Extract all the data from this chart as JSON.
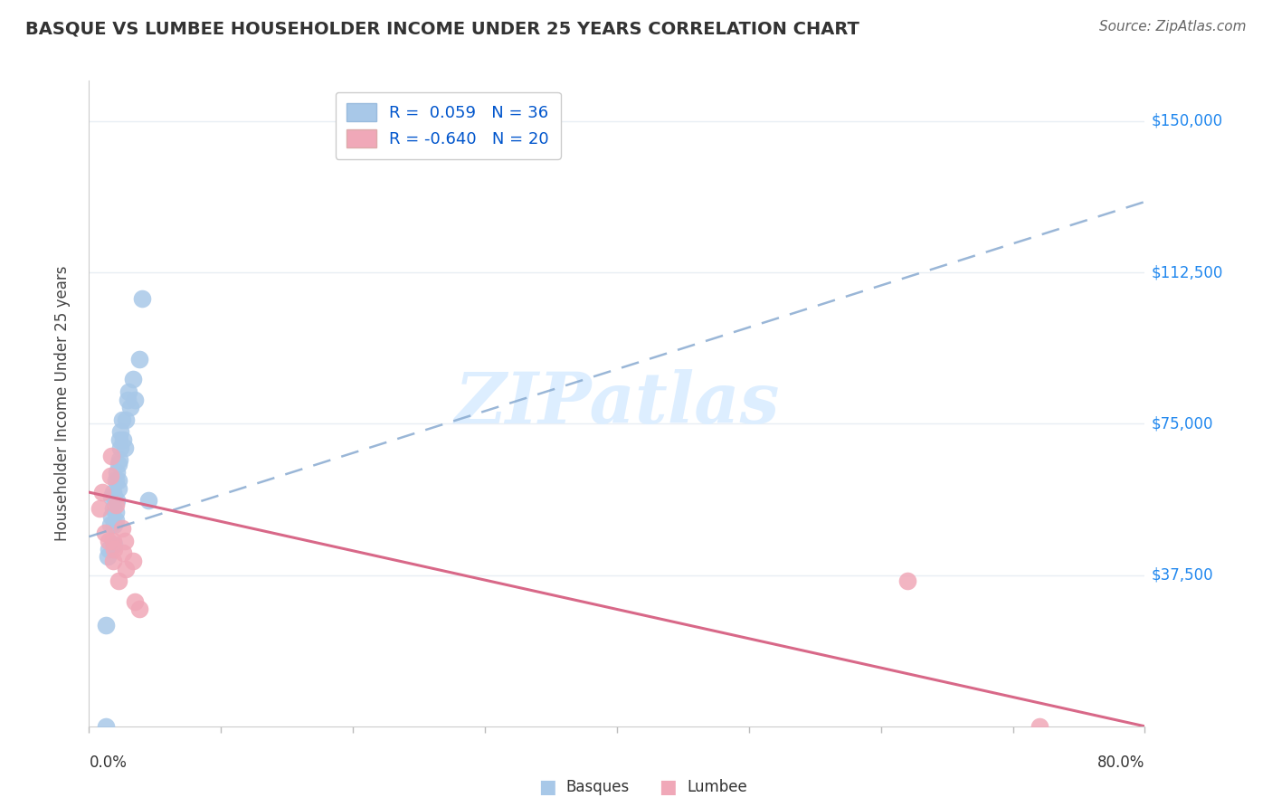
{
  "title": "BASQUE VS LUMBEE HOUSEHOLDER INCOME UNDER 25 YEARS CORRELATION CHART",
  "source": "Source: ZipAtlas.com",
  "ylabel": "Householder Income Under 25 years",
  "ytick_labels": [
    "$37,500",
    "$75,000",
    "$112,500",
    "$150,000"
  ],
  "ytick_values": [
    37500,
    75000,
    112500,
    150000
  ],
  "xlim": [
    0.0,
    0.8
  ],
  "ylim": [
    0,
    160000
  ],
  "basque_R": "0.059",
  "basque_N": "36",
  "lumbee_R": "-0.640",
  "lumbee_N": "20",
  "basque_color": "#a8c8e8",
  "lumbee_color": "#f0a8b8",
  "basque_line_color": "#88aad0",
  "lumbee_line_color": "#d86888",
  "title_color": "#333333",
  "axis_label_color": "#444444",
  "ytick_color": "#2288ee",
  "source_color": "#666666",
  "legend_R_color": "#0055cc",
  "watermark_color": "#ddeeff",
  "grid_color": "#e8eef4",
  "basque_x": [
    0.013,
    0.013,
    0.014,
    0.015,
    0.016,
    0.017,
    0.017,
    0.018,
    0.018,
    0.019,
    0.019,
    0.019,
    0.02,
    0.02,
    0.02,
    0.021,
    0.021,
    0.022,
    0.022,
    0.022,
    0.023,
    0.023,
    0.024,
    0.024,
    0.025,
    0.026,
    0.027,
    0.028,
    0.029,
    0.03,
    0.031,
    0.033,
    0.035,
    0.038,
    0.04,
    0.045
  ],
  "basque_y": [
    25000,
    0,
    42000,
    44000,
    50000,
    52000,
    57000,
    54000,
    58000,
    45000,
    50000,
    57000,
    53000,
    61000,
    51000,
    56000,
    63000,
    59000,
    65000,
    61000,
    66000,
    71000,
    69000,
    73000,
    76000,
    71000,
    69000,
    76000,
    81000,
    83000,
    79000,
    86000,
    81000,
    91000,
    106000,
    56000
  ],
  "lumbee_x": [
    0.008,
    0.01,
    0.012,
    0.015,
    0.016,
    0.017,
    0.018,
    0.018,
    0.019,
    0.02,
    0.022,
    0.025,
    0.026,
    0.027,
    0.028,
    0.033,
    0.035,
    0.038,
    0.62,
    0.72
  ],
  "lumbee_y": [
    54000,
    58000,
    48000,
    46000,
    62000,
    67000,
    41000,
    46000,
    44000,
    55000,
    36000,
    49000,
    43000,
    46000,
    39000,
    41000,
    31000,
    29000,
    36000,
    0
  ],
  "basque_trend_x": [
    0.0,
    0.8
  ],
  "basque_trend_y": [
    47000,
    130000
  ],
  "lumbee_trend_x": [
    0.0,
    0.8
  ],
  "lumbee_trend_y": [
    58000,
    0
  ]
}
